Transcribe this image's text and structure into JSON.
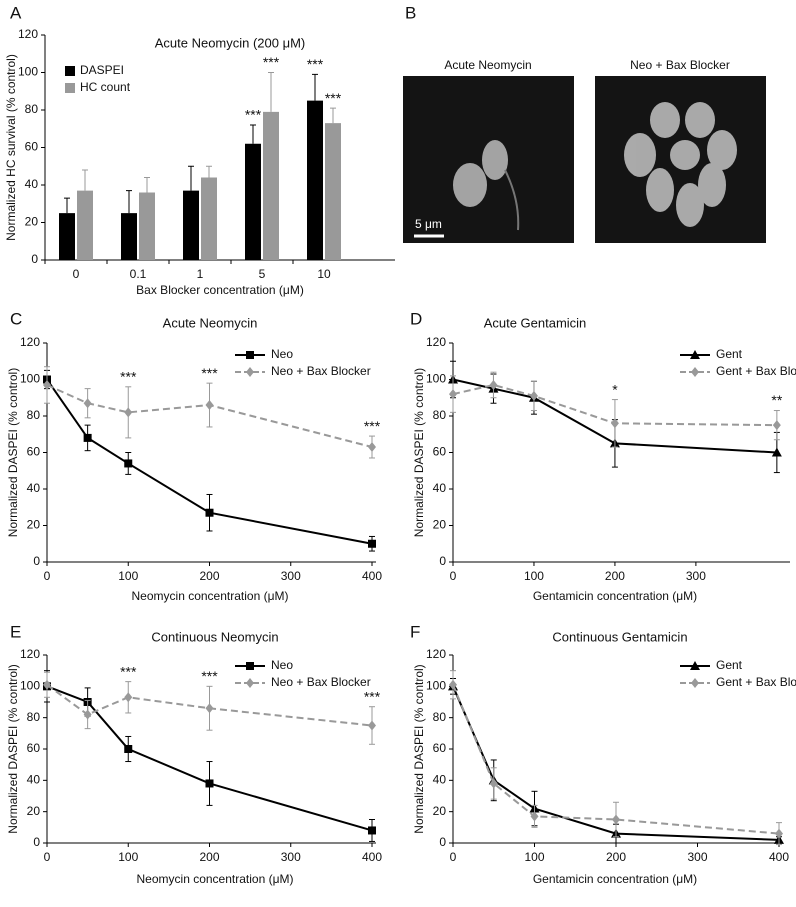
{
  "chart_data": [
    {
      "type": "bar",
      "label": "A",
      "title": "Acute Neomycin (200 μM)",
      "x_label": "Bax Blocker concentration (μM)",
      "y_label": "Normalized HC survival (% control)",
      "categories": [
        "0",
        "0.1",
        "1",
        "5",
        "10"
      ],
      "series": [
        {
          "name": "DASPEI",
          "color": "#000000",
          "values": [
            25,
            25,
            37,
            62,
            85
          ],
          "errors": [
            8,
            12,
            13,
            10,
            14
          ],
          "annotations": [
            null,
            null,
            null,
            "***",
            "***"
          ]
        },
        {
          "name": "HC count",
          "color": "#999999",
          "values": [
            37,
            36,
            44,
            79,
            73
          ],
          "errors": [
            11,
            8,
            6,
            21,
            8
          ],
          "annotations": [
            null,
            null,
            null,
            "***",
            "***"
          ]
        }
      ],
      "ylim": [
        0,
        120
      ],
      "yticks": [
        0,
        20,
        40,
        60,
        80,
        100,
        120
      ]
    },
    {
      "type": "line",
      "label": "C",
      "title": "Acute Neomycin",
      "x_label": "Neomycin concentration (μM)",
      "y_label": "Normalized DASPEI (% control)",
      "x": [
        0,
        50,
        100,
        200,
        400
      ],
      "series": [
        {
          "name": "Neo",
          "color": "#000000",
          "marker": "square",
          "dashed": false,
          "values": [
            100,
            68,
            54,
            27,
            10
          ],
          "errors": [
            5,
            7,
            6,
            10,
            4
          ],
          "annotations": [
            null,
            null,
            null,
            null,
            null
          ]
        },
        {
          "name": "Neo + Bax Blocker",
          "color": "#999999",
          "marker": "diamond",
          "dashed": true,
          "values": [
            97,
            87,
            82,
            86,
            63
          ],
          "errors": [
            10,
            8,
            14,
            12,
            6
          ],
          "annotations": [
            null,
            null,
            "***",
            "***",
            "***"
          ]
        }
      ],
      "xlim": [
        0,
        400
      ],
      "xticks": [
        0,
        100,
        200,
        300,
        400
      ],
      "ylim": [
        0,
        120
      ],
      "yticks": [
        0,
        20,
        40,
        60,
        80,
        100,
        120
      ]
    },
    {
      "type": "line",
      "label": "D",
      "title": "Acute Gentamicin",
      "x_label": "Gentamicin concentration (μM)",
      "y_label": "Normalized DASPEI (% control)",
      "x": [
        0,
        50,
        100,
        200,
        400
      ],
      "series": [
        {
          "name": "Gent",
          "color": "#000000",
          "marker": "triangle",
          "dashed": false,
          "values": [
            100,
            95,
            90,
            65,
            60
          ],
          "errors": [
            10,
            8,
            9,
            13,
            11
          ],
          "annotations": [
            null,
            null,
            null,
            null,
            null
          ]
        },
        {
          "name": "Gent + Bax Blocker",
          "color": "#999999",
          "marker": "diamond",
          "dashed": true,
          "values": [
            92,
            97,
            91,
            76,
            75
          ],
          "errors": [
            10,
            7,
            8,
            13,
            8
          ],
          "annotations": [
            null,
            null,
            null,
            "*",
            "**"
          ]
        }
      ],
      "xlim": [
        0,
        415
      ],
      "xticks": [
        0,
        100,
        200,
        300
      ],
      "ylim": [
        0,
        120
      ],
      "yticks": [
        0,
        20,
        40,
        60,
        80,
        100,
        120
      ]
    },
    {
      "type": "line",
      "label": "E",
      "title": "Continuous Neomycin",
      "x_label": "Neomycin concentration (μM)",
      "y_label": "Normalized DASPEI (% control)",
      "x": [
        0,
        50,
        100,
        200,
        400
      ],
      "series": [
        {
          "name": "Neo",
          "color": "#000000",
          "marker": "square",
          "dashed": false,
          "values": [
            100,
            90,
            60,
            38,
            8
          ],
          "errors": [
            10,
            9,
            8,
            14,
            7
          ],
          "annotations": [
            null,
            null,
            null,
            null,
            null
          ]
        },
        {
          "name": "Neo + Bax Blocker",
          "color": "#999999",
          "marker": "diamond",
          "dashed": true,
          "values": [
            101,
            82,
            93,
            86,
            75
          ],
          "errors": [
            8,
            9,
            10,
            14,
            12
          ],
          "annotations": [
            null,
            null,
            "***",
            "***",
            "***"
          ]
        }
      ],
      "xlim": [
        0,
        400
      ],
      "xticks": [
        0,
        100,
        200,
        300,
        400
      ],
      "ylim": [
        0,
        120
      ],
      "yticks": [
        0,
        20,
        40,
        60,
        80,
        100,
        120
      ]
    },
    {
      "type": "line",
      "label": "F",
      "title": "Continuous Gentamicin",
      "x_label": "Gentamicin concentration (μM)",
      "y_label": "Normalized DASPEI (% control)",
      "x": [
        0,
        50,
        100,
        200,
        400
      ],
      "series": [
        {
          "name": "Gent",
          "color": "#000000",
          "marker": "triangle",
          "dashed": false,
          "values": [
            100,
            40,
            22,
            6,
            2
          ],
          "errors": [
            5,
            13,
            11,
            6,
            2
          ],
          "annotations": [
            null,
            null,
            null,
            null,
            null
          ]
        },
        {
          "name": "Gent + Bax Blocker",
          "color": "#999999",
          "marker": "diamond",
          "dashed": true,
          "values": [
            101,
            38,
            17,
            15,
            6
          ],
          "errors": [
            9,
            10,
            7,
            11,
            7
          ],
          "annotations": [
            null,
            null,
            null,
            null,
            null
          ]
        }
      ],
      "xlim": [
        0,
        400
      ],
      "xticks": [
        0,
        100,
        200,
        300,
        400
      ],
      "ylim": [
        0,
        120
      ],
      "yticks": [
        0,
        20,
        40,
        60,
        80,
        100,
        120
      ]
    }
  ],
  "image_panel": {
    "label": "B",
    "images": [
      {
        "title": "Acute Neomycin"
      },
      {
        "title": "Neo + Bax Blocker"
      }
    ],
    "scale_bar": "5 μm"
  }
}
